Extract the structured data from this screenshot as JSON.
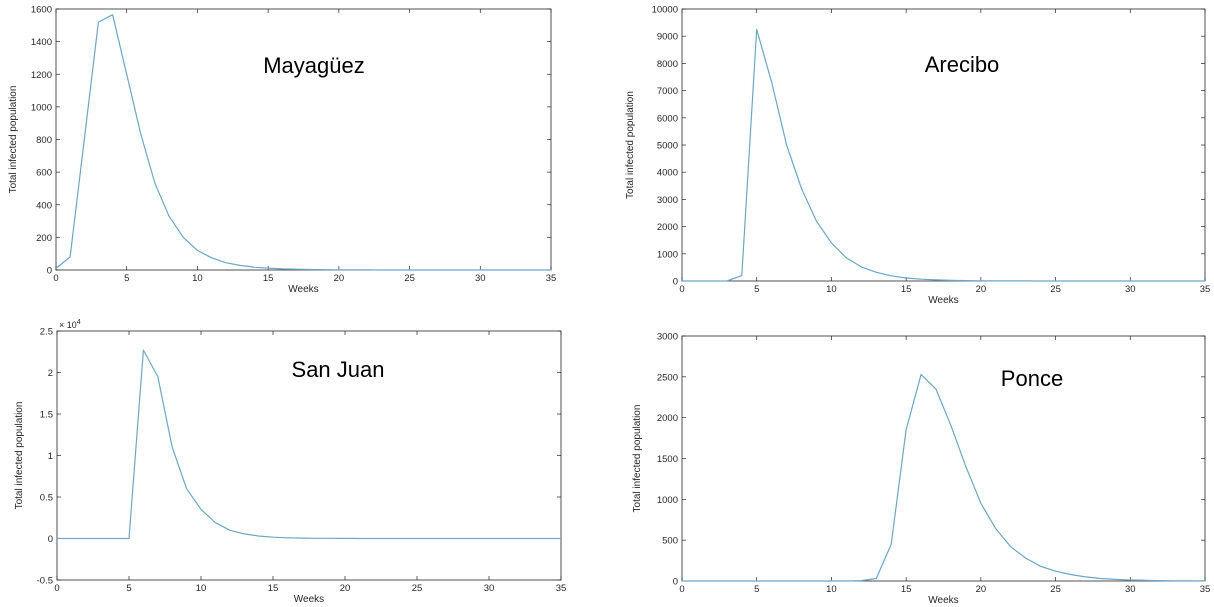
{
  "line_color": "#6aa7c9",
  "chart_data": [
    {
      "type": "line",
      "title": "Mayagüez",
      "xlabel": "Weeks",
      "ylabel": "Total infected population",
      "xlim": [
        0,
        35
      ],
      "ylim": [
        0,
        1600
      ],
      "xticks": [
        0,
        5,
        10,
        15,
        20,
        25,
        30,
        35
      ],
      "yticks": [
        0,
        200,
        400,
        600,
        800,
        1000,
        1200,
        1400,
        1600
      ],
      "exponent_label": "",
      "grid": false,
      "series": [
        {
          "x": [
            0,
            1,
            2,
            3,
            4,
            5,
            6,
            7,
            8,
            9,
            10,
            11,
            12,
            13,
            14,
            15,
            16,
            17,
            18,
            19,
            20,
            21,
            22,
            23,
            24,
            25,
            26,
            27,
            28,
            29,
            30,
            31,
            32,
            33,
            34,
            35
          ],
          "y": [
            10,
            80,
            800,
            1520,
            1565,
            1200,
            830,
            530,
            330,
            200,
            120,
            75,
            45,
            28,
            18,
            11,
            7,
            5,
            3,
            2,
            1,
            1,
            1,
            0,
            0,
            0,
            0,
            0,
            0,
            0,
            0,
            0,
            0,
            0,
            0,
            0
          ]
        }
      ]
    },
    {
      "type": "line",
      "title": "Arecibo",
      "xlabel": "Weeks",
      "ylabel": "Total infected population",
      "xlim": [
        0,
        35
      ],
      "ylim": [
        0,
        10000
      ],
      "xticks": [
        0,
        5,
        10,
        15,
        20,
        25,
        30,
        35
      ],
      "yticks": [
        0,
        1000,
        2000,
        3000,
        4000,
        5000,
        6000,
        7000,
        8000,
        9000,
        10000
      ],
      "exponent_label": "",
      "grid": false,
      "series": [
        {
          "x": [
            0,
            1,
            2,
            3,
            4,
            5,
            6,
            7,
            8,
            9,
            10,
            11,
            12,
            13,
            14,
            15,
            16,
            17,
            18,
            19,
            20,
            21,
            22,
            23,
            24,
            25,
            26,
            27,
            28,
            29,
            30,
            31,
            32,
            33,
            34,
            35
          ],
          "y": [
            0,
            0,
            0,
            0,
            200,
            9250,
            7300,
            5000,
            3400,
            2200,
            1400,
            850,
            520,
            320,
            190,
            110,
            65,
            40,
            22,
            13,
            8,
            5,
            3,
            2,
            1,
            0,
            0,
            0,
            0,
            0,
            0,
            0,
            0,
            0,
            0,
            0
          ]
        }
      ]
    },
    {
      "type": "line",
      "title": "San Juan",
      "xlabel": "Weeks",
      "ylabel": "Total infected population",
      "xlim": [
        0,
        35
      ],
      "ylim": [
        -0.5,
        2.5
      ],
      "xticks": [
        0,
        5,
        10,
        15,
        20,
        25,
        30,
        35
      ],
      "yticks": [
        -0.5,
        0,
        0.5,
        1,
        1.5,
        2,
        2.5
      ],
      "exponent_label": "× 10^4",
      "grid": false,
      "series": [
        {
          "x": [
            0,
            1,
            2,
            3,
            4,
            5,
            6,
            7,
            8,
            9,
            10,
            11,
            12,
            13,
            14,
            15,
            16,
            17,
            18,
            19,
            20,
            21,
            22,
            23,
            24,
            25,
            26,
            27,
            28,
            29,
            30,
            31,
            32,
            33,
            34,
            35
          ],
          "y": [
            0,
            0,
            0,
            0,
            0,
            0,
            2.27,
            1.95,
            1.1,
            0.6,
            0.35,
            0.19,
            0.1,
            0.055,
            0.03,
            0.016,
            0.009,
            0.005,
            0.003,
            0.002,
            0.001,
            0,
            0,
            0,
            0,
            0,
            0,
            0,
            0,
            0,
            0,
            0,
            0,
            0,
            0,
            0
          ]
        }
      ]
    },
    {
      "type": "line",
      "title": "Ponce",
      "xlabel": "Weeks",
      "ylabel": "Total infected population",
      "xlim": [
        0,
        35
      ],
      "ylim": [
        0,
        3000
      ],
      "xticks": [
        0,
        5,
        10,
        15,
        20,
        25,
        30,
        35
      ],
      "yticks": [
        0,
        500,
        1000,
        1500,
        2000,
        2500,
        3000
      ],
      "exponent_label": "",
      "grid": false,
      "series": [
        {
          "x": [
            0,
            1,
            2,
            3,
            4,
            5,
            6,
            7,
            8,
            9,
            10,
            11,
            12,
            13,
            14,
            15,
            16,
            17,
            18,
            19,
            20,
            21,
            22,
            23,
            24,
            25,
            26,
            27,
            28,
            29,
            30,
            31,
            32,
            33,
            34,
            35
          ],
          "y": [
            0,
            0,
            0,
            0,
            0,
            0,
            0,
            0,
            0,
            0,
            0,
            0,
            5,
            30,
            450,
            1850,
            2530,
            2350,
            1900,
            1400,
            950,
            640,
            420,
            280,
            180,
            120,
            80,
            50,
            30,
            20,
            12,
            8,
            5,
            3,
            2,
            1
          ]
        }
      ]
    }
  ]
}
